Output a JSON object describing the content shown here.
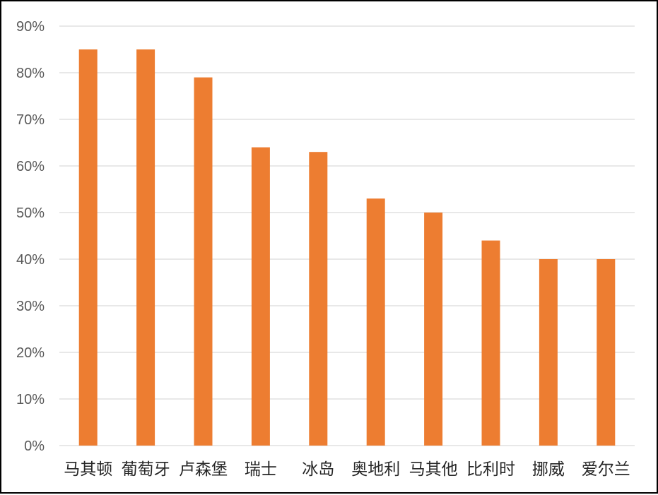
{
  "chart_data": {
    "type": "bar",
    "categories": [
      "马其顿",
      "葡萄牙",
      "卢森堡",
      "瑞士",
      "冰岛",
      "奥地利",
      "马其他",
      "比利时",
      "挪威",
      "爱尔兰"
    ],
    "values": [
      85,
      85,
      79,
      64,
      63,
      53,
      50,
      44,
      40,
      40
    ],
    "ylim": [
      0,
      90
    ],
    "yticks": [
      "0%",
      "10%",
      "20%",
      "30%",
      "40%",
      "50%",
      "60%",
      "70%",
      "80%",
      "90%"
    ],
    "value_unit": "%",
    "grid": true,
    "legend": "none",
    "bar_color": "#ED7D31",
    "grid_color": "#D9D9D9"
  }
}
